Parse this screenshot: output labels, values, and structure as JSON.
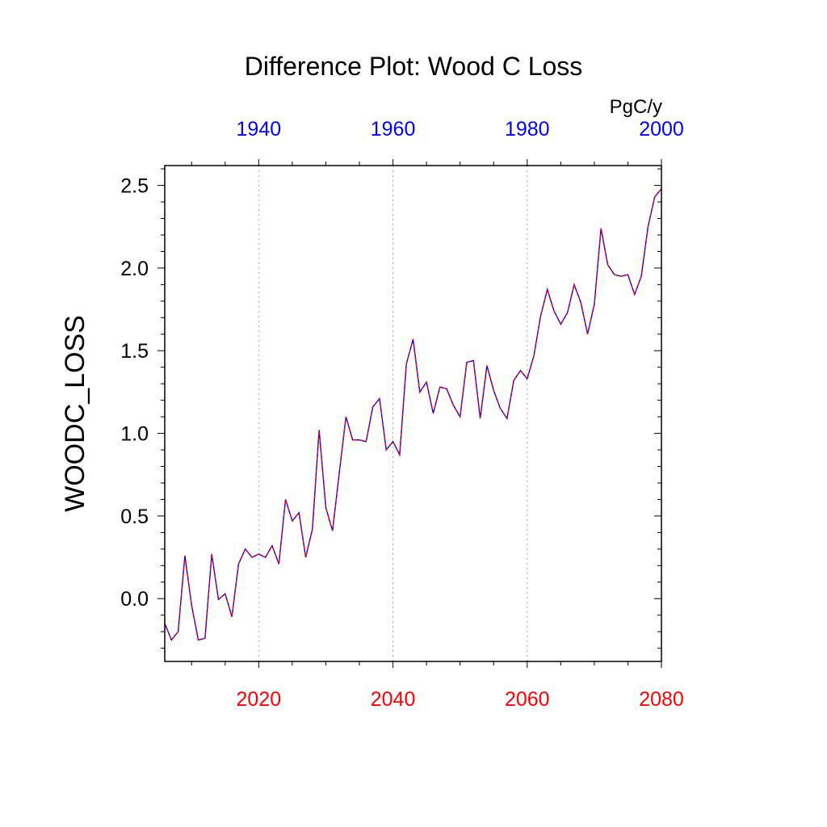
{
  "chart_data": {
    "type": "line",
    "title": "Difference Plot: Wood C Loss",
    "ylabel": "WOODC_LOSS",
    "units_label": "PgC/y",
    "ylim": [
      -0.38,
      2.62
    ],
    "yticks": [
      0.0,
      0.5,
      1.0,
      1.5,
      2.0,
      2.5
    ],
    "ytick_labels": [
      "0.0",
      "0.5",
      "1.0",
      "1.5",
      "2.0",
      "2.5"
    ],
    "x_bottom": {
      "range": [
        2006,
        2080
      ],
      "ticks": [
        2020,
        2040,
        2060,
        2080
      ],
      "tick_labels": [
        "2020",
        "2040",
        "2060",
        "2080"
      ],
      "color": "#ff0000"
    },
    "x_top": {
      "range": [
        1926,
        2000
      ],
      "ticks": [
        1940,
        1960,
        1980,
        2000
      ],
      "tick_labels": [
        "1940",
        "1960",
        "1980",
        "2000"
      ],
      "color": "#0000ff"
    },
    "grid": "vertical dotted at bottom-axis major ticks",
    "legend": "none",
    "series": [
      {
        "line_style": "dashed",
        "colors": [
          "#0000ff",
          "#ff0000"
        ],
        "x": [
          2006,
          2007,
          2008,
          2009,
          2010,
          2011,
          2012,
          2013,
          2014,
          2015,
          2016,
          2017,
          2018,
          2019,
          2020,
          2021,
          2022,
          2023,
          2024,
          2025,
          2026,
          2027,
          2028,
          2029,
          2030,
          2031,
          2032,
          2033,
          2034,
          2035,
          2036,
          2037,
          2038,
          2039,
          2040,
          2041,
          2042,
          2043,
          2044,
          2045,
          2046,
          2047,
          2048,
          2049,
          2050,
          2051,
          2052,
          2053,
          2054,
          2055,
          2056,
          2057,
          2058,
          2059,
          2060,
          2061,
          2062,
          2063,
          2064,
          2065,
          2066,
          2067,
          2068,
          2069,
          2070,
          2071,
          2072,
          2073,
          2074,
          2075,
          2076,
          2077,
          2078,
          2079,
          2080
        ],
        "y": [
          -0.15,
          -0.25,
          -0.2,
          0.26,
          -0.04,
          -0.25,
          -0.24,
          0.27,
          -0.005,
          0.03,
          -0.11,
          0.21,
          0.3,
          0.25,
          0.27,
          0.25,
          0.32,
          0.21,
          0.6,
          0.47,
          0.52,
          0.25,
          0.42,
          1.02,
          0.55,
          0.41,
          0.76,
          1.1,
          0.96,
          0.96,
          0.95,
          1.16,
          1.21,
          0.9,
          0.95,
          0.87,
          1.42,
          1.57,
          1.25,
          1.31,
          1.12,
          1.28,
          1.27,
          1.17,
          1.1,
          1.43,
          1.44,
          1.09,
          1.41,
          1.26,
          1.15,
          1.09,
          1.32,
          1.38,
          1.33,
          1.47,
          1.71,
          1.87,
          1.74,
          1.66,
          1.73,
          1.9,
          1.79,
          1.6,
          1.78,
          2.24,
          2.02,
          1.96,
          1.95,
          1.96,
          1.84,
          1.95,
          2.25,
          2.43,
          2.48
        ]
      }
    ]
  }
}
